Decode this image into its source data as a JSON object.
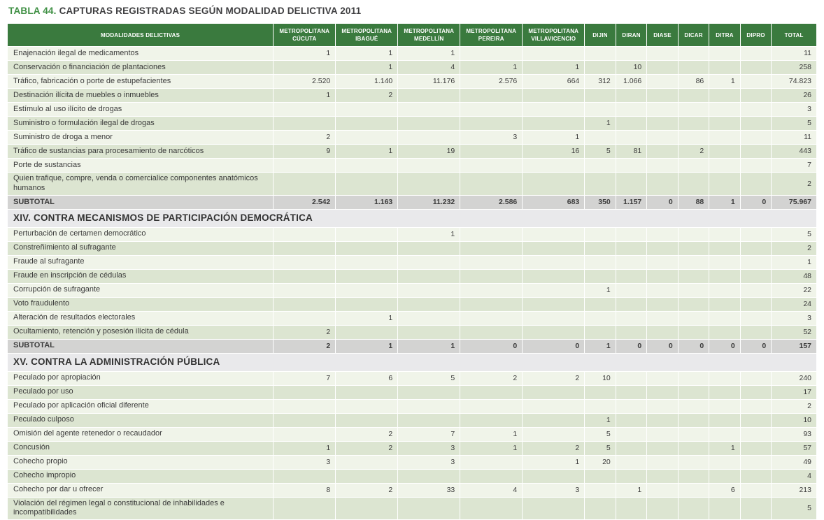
{
  "title": {
    "prefix": "TABLA 44.",
    "text": "CAPTURAS REGISTRADAS SEGÚN MODALIDAD DELICTIVA 2011"
  },
  "colors": {
    "header_green": "#3a7a3e",
    "title_green": "#3f9044",
    "stripe_light": "#f0f4e9",
    "stripe_dark": "#dce5d1",
    "subtotal_gray": "#d3d3d2",
    "section_gray": "#e9e9eb"
  },
  "table": {
    "columns": [
      "MODALIDADES DELICTIVAS",
      "METROPOLITANA CÚCUTA",
      "METROPOLITANA IBAGUÉ",
      "METROPOLITANA MEDELLÍN",
      "METROPOLITANA PEREIRA",
      "METROPOLITANA VILLAVICENCIO",
      "DIJIN",
      "DIRAN",
      "DIASE",
      "DICAR",
      "DITRA",
      "DIPRO",
      "TOTAL"
    ],
    "rows": [
      {
        "type": "data",
        "label": "Enajenación ilegal de medicamentos",
        "values": [
          "1",
          "1",
          "1",
          "",
          "",
          "",
          "",
          "",
          "",
          "",
          "",
          "11"
        ]
      },
      {
        "type": "data",
        "label": "Conservación o financiación de plantaciones",
        "values": [
          "",
          "1",
          "4",
          "1",
          "1",
          "",
          "10",
          "",
          "",
          "",
          "",
          "258"
        ]
      },
      {
        "type": "data",
        "label": "Tráfico, fabricación o porte de estupefacientes",
        "values": [
          "2.520",
          "1.140",
          "11.176",
          "2.576",
          "664",
          "312",
          "1.066",
          "",
          "86",
          "1",
          "",
          "74.823"
        ]
      },
      {
        "type": "data",
        "label": "Destinación ilícita de muebles o inmuebles",
        "values": [
          "1",
          "2",
          "",
          "",
          "",
          "",
          "",
          "",
          "",
          "",
          "",
          "26"
        ]
      },
      {
        "type": "data",
        "label": "Estímulo al uso ilícito de drogas",
        "values": [
          "",
          "",
          "",
          "",
          "",
          "",
          "",
          "",
          "",
          "",
          "",
          "3"
        ]
      },
      {
        "type": "data",
        "label": "Suministro o formulación ilegal de drogas",
        "values": [
          "",
          "",
          "",
          "",
          "",
          "1",
          "",
          "",
          "",
          "",
          "",
          "5"
        ]
      },
      {
        "type": "data",
        "label": "Suministro de droga a menor",
        "values": [
          "2",
          "",
          "",
          "3",
          "1",
          "",
          "",
          "",
          "",
          "",
          "",
          "11"
        ]
      },
      {
        "type": "data",
        "label": "Tráfico de sustancias para procesamiento de narcóticos",
        "values": [
          "9",
          "1",
          "19",
          "",
          "16",
          "5",
          "81",
          "",
          "2",
          "",
          "",
          "443"
        ]
      },
      {
        "type": "data",
        "label": "Porte de sustancias",
        "values": [
          "",
          "",
          "",
          "",
          "",
          "",
          "",
          "",
          "",
          "",
          "",
          "7"
        ]
      },
      {
        "type": "data",
        "label": "Quien trafique, compre, venda o comercialice componentes anatómicos humanos",
        "values": [
          "",
          "",
          "",
          "",
          "",
          "",
          "",
          "",
          "",
          "",
          "",
          "2"
        ]
      },
      {
        "type": "subtotal",
        "label": "SUBTOTAL",
        "values": [
          "2.542",
          "1.163",
          "11.232",
          "2.586",
          "683",
          "350",
          "1.157",
          "0",
          "88",
          "1",
          "0",
          "75.967"
        ]
      },
      {
        "type": "section",
        "label": "XIV. CONTRA MECANISMOS DE PARTICIPACIÓN DEMOCRÁTICA"
      },
      {
        "type": "data",
        "label": "Perturbación de certamen democrático",
        "values": [
          "",
          "",
          "1",
          "",
          "",
          "",
          "",
          "",
          "",
          "",
          "",
          "5"
        ]
      },
      {
        "type": "data",
        "label": "Constreñimiento al sufragante",
        "values": [
          "",
          "",
          "",
          "",
          "",
          "",
          "",
          "",
          "",
          "",
          "",
          "2"
        ]
      },
      {
        "type": "data",
        "label": "Fraude al sufragante",
        "values": [
          "",
          "",
          "",
          "",
          "",
          "",
          "",
          "",
          "",
          "",
          "",
          "1"
        ]
      },
      {
        "type": "data",
        "label": "Fraude en inscripción de cédulas",
        "values": [
          "",
          "",
          "",
          "",
          "",
          "",
          "",
          "",
          "",
          "",
          "",
          "48"
        ]
      },
      {
        "type": "data",
        "label": "Corrupción de sufragante",
        "values": [
          "",
          "",
          "",
          "",
          "",
          "1",
          "",
          "",
          "",
          "",
          "",
          "22"
        ]
      },
      {
        "type": "data",
        "label": "Voto fraudulento",
        "values": [
          "",
          "",
          "",
          "",
          "",
          "",
          "",
          "",
          "",
          "",
          "",
          "24"
        ]
      },
      {
        "type": "data",
        "label": "Alteración de resultados electorales",
        "values": [
          "",
          "1",
          "",
          "",
          "",
          "",
          "",
          "",
          "",
          "",
          "",
          "3"
        ]
      },
      {
        "type": "data",
        "label": "Ocultamiento, retención y posesión ilícita de cédula",
        "values": [
          "2",
          "",
          "",
          "",
          "",
          "",
          "",
          "",
          "",
          "",
          "",
          "52"
        ]
      },
      {
        "type": "subtotal",
        "label": "SUBTOTAL",
        "values": [
          "2",
          "1",
          "1",
          "0",
          "0",
          "1",
          "0",
          "0",
          "0",
          "0",
          "0",
          "157"
        ]
      },
      {
        "type": "section",
        "label": "XV. CONTRA LA ADMINISTRACIÓN PÚBLICA"
      },
      {
        "type": "data",
        "label": "Peculado por apropiación",
        "values": [
          "7",
          "6",
          "5",
          "2",
          "2",
          "10",
          "",
          "",
          "",
          "",
          "",
          "240"
        ]
      },
      {
        "type": "data",
        "label": "Peculado por uso",
        "values": [
          "",
          "",
          "",
          "",
          "",
          "",
          "",
          "",
          "",
          "",
          "",
          "17"
        ]
      },
      {
        "type": "data",
        "label": "Peculado por aplicación oficial diferente",
        "values": [
          "",
          "",
          "",
          "",
          "",
          "",
          "",
          "",
          "",
          "",
          "",
          "2"
        ]
      },
      {
        "type": "data",
        "label": "Peculado culposo",
        "values": [
          "",
          "",
          "",
          "",
          "",
          "1",
          "",
          "",
          "",
          "",
          "",
          "10"
        ]
      },
      {
        "type": "data",
        "label": "Omisión del agente retenedor o recaudador",
        "values": [
          "",
          "2",
          "7",
          "1",
          "",
          "5",
          "",
          "",
          "",
          "",
          "",
          "93"
        ]
      },
      {
        "type": "data",
        "label": "Concusión",
        "values": [
          "1",
          "2",
          "3",
          "1",
          "2",
          "5",
          "",
          "",
          "",
          "1",
          "",
          "57"
        ]
      },
      {
        "type": "data",
        "label": "Cohecho propio",
        "values": [
          "3",
          "",
          "3",
          "",
          "1",
          "20",
          "",
          "",
          "",
          "",
          "",
          "49"
        ]
      },
      {
        "type": "data",
        "label": "Cohecho impropio",
        "values": [
          "",
          "",
          "",
          "",
          "",
          "",
          "",
          "",
          "",
          "",
          "",
          "4"
        ]
      },
      {
        "type": "data",
        "label": "Cohecho por dar u ofrecer",
        "values": [
          "8",
          "2",
          "33",
          "4",
          "3",
          "",
          "1",
          "",
          "",
          "6",
          "",
          "213"
        ]
      },
      {
        "type": "data",
        "label": "Violación del régimen legal o constitucional de inhabilidades e incompatibilidades",
        "values": [
          "",
          "",
          "",
          "",
          "",
          "",
          "",
          "",
          "",
          "",
          "",
          "5"
        ]
      }
    ]
  }
}
